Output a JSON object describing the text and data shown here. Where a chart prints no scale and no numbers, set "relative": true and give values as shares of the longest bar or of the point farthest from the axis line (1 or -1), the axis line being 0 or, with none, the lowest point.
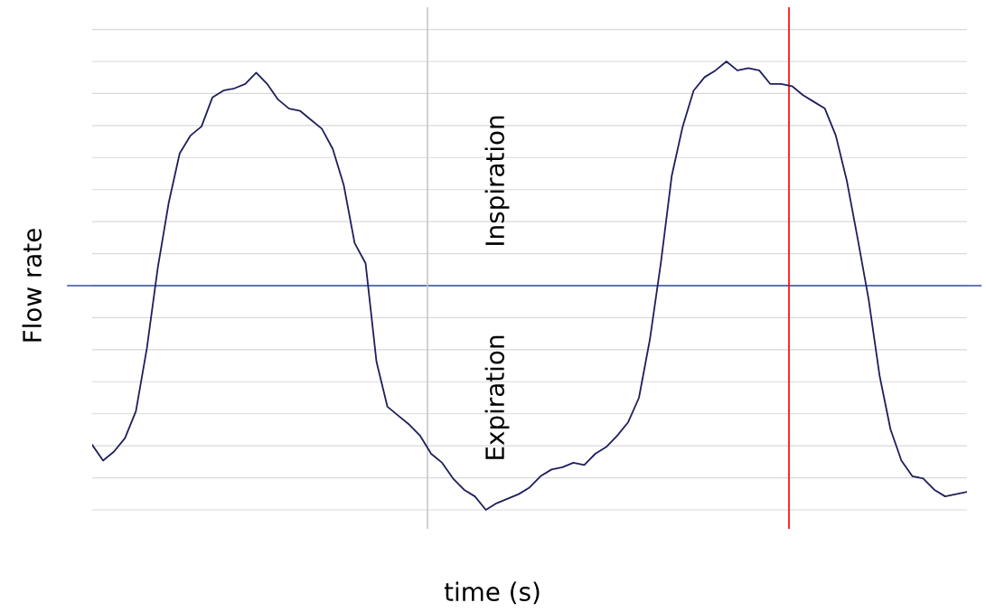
{
  "chart_data": {
    "type": "line",
    "relative": true,
    "xlabel": "time (s)",
    "ylabel": "Flow rate",
    "annotations": [
      "Inspiration",
      "Expiration"
    ],
    "categories": [
      null,
      null,
      null,
      null,
      null,
      null,
      null,
      null,
      null,
      null,
      null,
      null,
      null,
      null,
      null,
      null,
      null,
      null,
      null,
      null,
      null,
      null,
      null,
      null,
      null,
      null,
      null,
      null,
      null,
      null,
      null,
      null,
      null,
      null,
      null,
      null,
      null,
      null,
      null,
      null,
      null,
      null,
      null,
      null,
      null,
      null,
      null,
      null,
      null,
      null,
      null,
      null,
      null,
      null,
      null,
      null,
      null,
      null,
      null,
      null,
      null,
      null,
      null,
      null,
      null,
      null,
      null,
      null,
      null,
      null,
      null,
      null,
      null,
      null,
      null,
      null,
      null,
      null,
      null,
      null,
      null
    ],
    "series": [
      {
        "color": "#1f1f5c",
        "values": [
          -0.71,
          -0.78,
          -0.74,
          -0.68,
          -0.56,
          -0.28,
          0.08,
          0.37,
          0.59,
          0.67,
          0.71,
          0.84,
          0.87,
          0.88,
          0.9,
          0.95,
          0.9,
          0.83,
          0.79,
          0.78,
          0.74,
          0.7,
          0.61,
          0.45,
          0.19,
          0.1,
          -0.34,
          -0.54,
          -0.58,
          -0.62,
          -0.67,
          -0.75,
          -0.79,
          -0.86,
          -0.91,
          -0.94,
          -1.0,
          -0.97,
          -0.95,
          -0.93,
          -0.9,
          -0.85,
          -0.82,
          -0.81,
          -0.79,
          -0.8,
          -0.75,
          -0.72,
          -0.67,
          -0.61,
          -0.5,
          -0.24,
          0.1,
          0.49,
          0.71,
          0.87,
          0.93,
          0.96,
          1.0,
          0.96,
          0.97,
          0.96,
          0.9,
          0.9,
          0.89,
          0.85,
          0.82,
          0.79,
          0.67,
          0.47,
          0.21,
          -0.06,
          -0.4,
          -0.64,
          -0.78,
          -0.85,
          -0.86,
          -0.91,
          -0.94,
          -0.93,
          -0.92
        ]
      }
    ],
    "ref_lines": [
      {
        "axis": "y",
        "value": 0,
        "color": "#2f4f9f"
      }
    ],
    "grid": "y",
    "marker": "none",
    "line_style": "solid"
  }
}
